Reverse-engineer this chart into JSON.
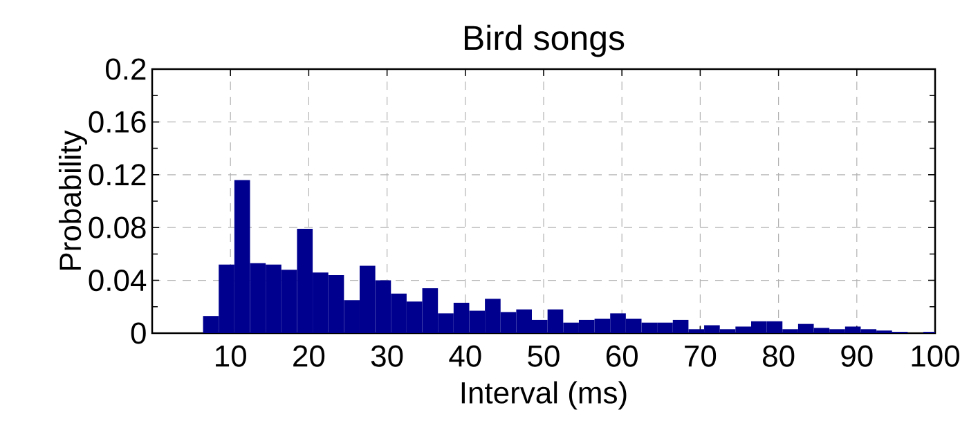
{
  "chart_data": {
    "type": "histogram",
    "title": "Bird songs",
    "xlabel": "Interval (ms)",
    "ylabel": "Probability",
    "bins": [
      6.5,
      8.5,
      10.5,
      12.5,
      14.5,
      16.5,
      18.5,
      20.5,
      22.5,
      24.5,
      26.5,
      28.5,
      30.5,
      32.5,
      34.5,
      36.5,
      38.5,
      40.5,
      42.5,
      44.5,
      46.5,
      48.5,
      50.5,
      52.5,
      54.5,
      56.5,
      58.5,
      60.5,
      62.5,
      64.5,
      66.5,
      68.5,
      70.5,
      72.5,
      74.5,
      76.5,
      78.5,
      80.5,
      82.5,
      84.5,
      86.5,
      88.5,
      90.5,
      92.5,
      94.5,
      96.5,
      98.5,
      100
    ],
    "values": [
      0.013,
      0.052,
      0.116,
      0.053,
      0.052,
      0.048,
      0.079,
      0.046,
      0.044,
      0.025,
      0.051,
      0.04,
      0.03,
      0.024,
      0.034,
      0.015,
      0.023,
      0.017,
      0.026,
      0.016,
      0.018,
      0.01,
      0.018,
      0.008,
      0.01,
      0.011,
      0.015,
      0.011,
      0.008,
      0.008,
      0.01,
      0.003,
      0.006,
      0.003,
      0.005,
      0.009,
      0.009,
      0.003,
      0.007,
      0.004,
      0.003,
      0.005,
      0.003,
      0.002,
      0.001,
      0,
      0.001
    ],
    "color": "#00008f",
    "xlim": [
      0,
      100
    ],
    "xticks": [
      10,
      20,
      30,
      40,
      50,
      60,
      70,
      80,
      90,
      100
    ],
    "ylim": [
      0,
      0.2
    ],
    "yticks": [
      0,
      {
        "value": 0.02,
        "label": null
      },
      0.04,
      {
        "value": 0.06,
        "label": null
      },
      0.08,
      {
        "value": 0.1,
        "label": null
      },
      0.12,
      {
        "value": 0.14,
        "label": null
      },
      0.16,
      {
        "value": 0.18,
        "label": null
      },
      0.2
    ],
    "grid": true
  }
}
